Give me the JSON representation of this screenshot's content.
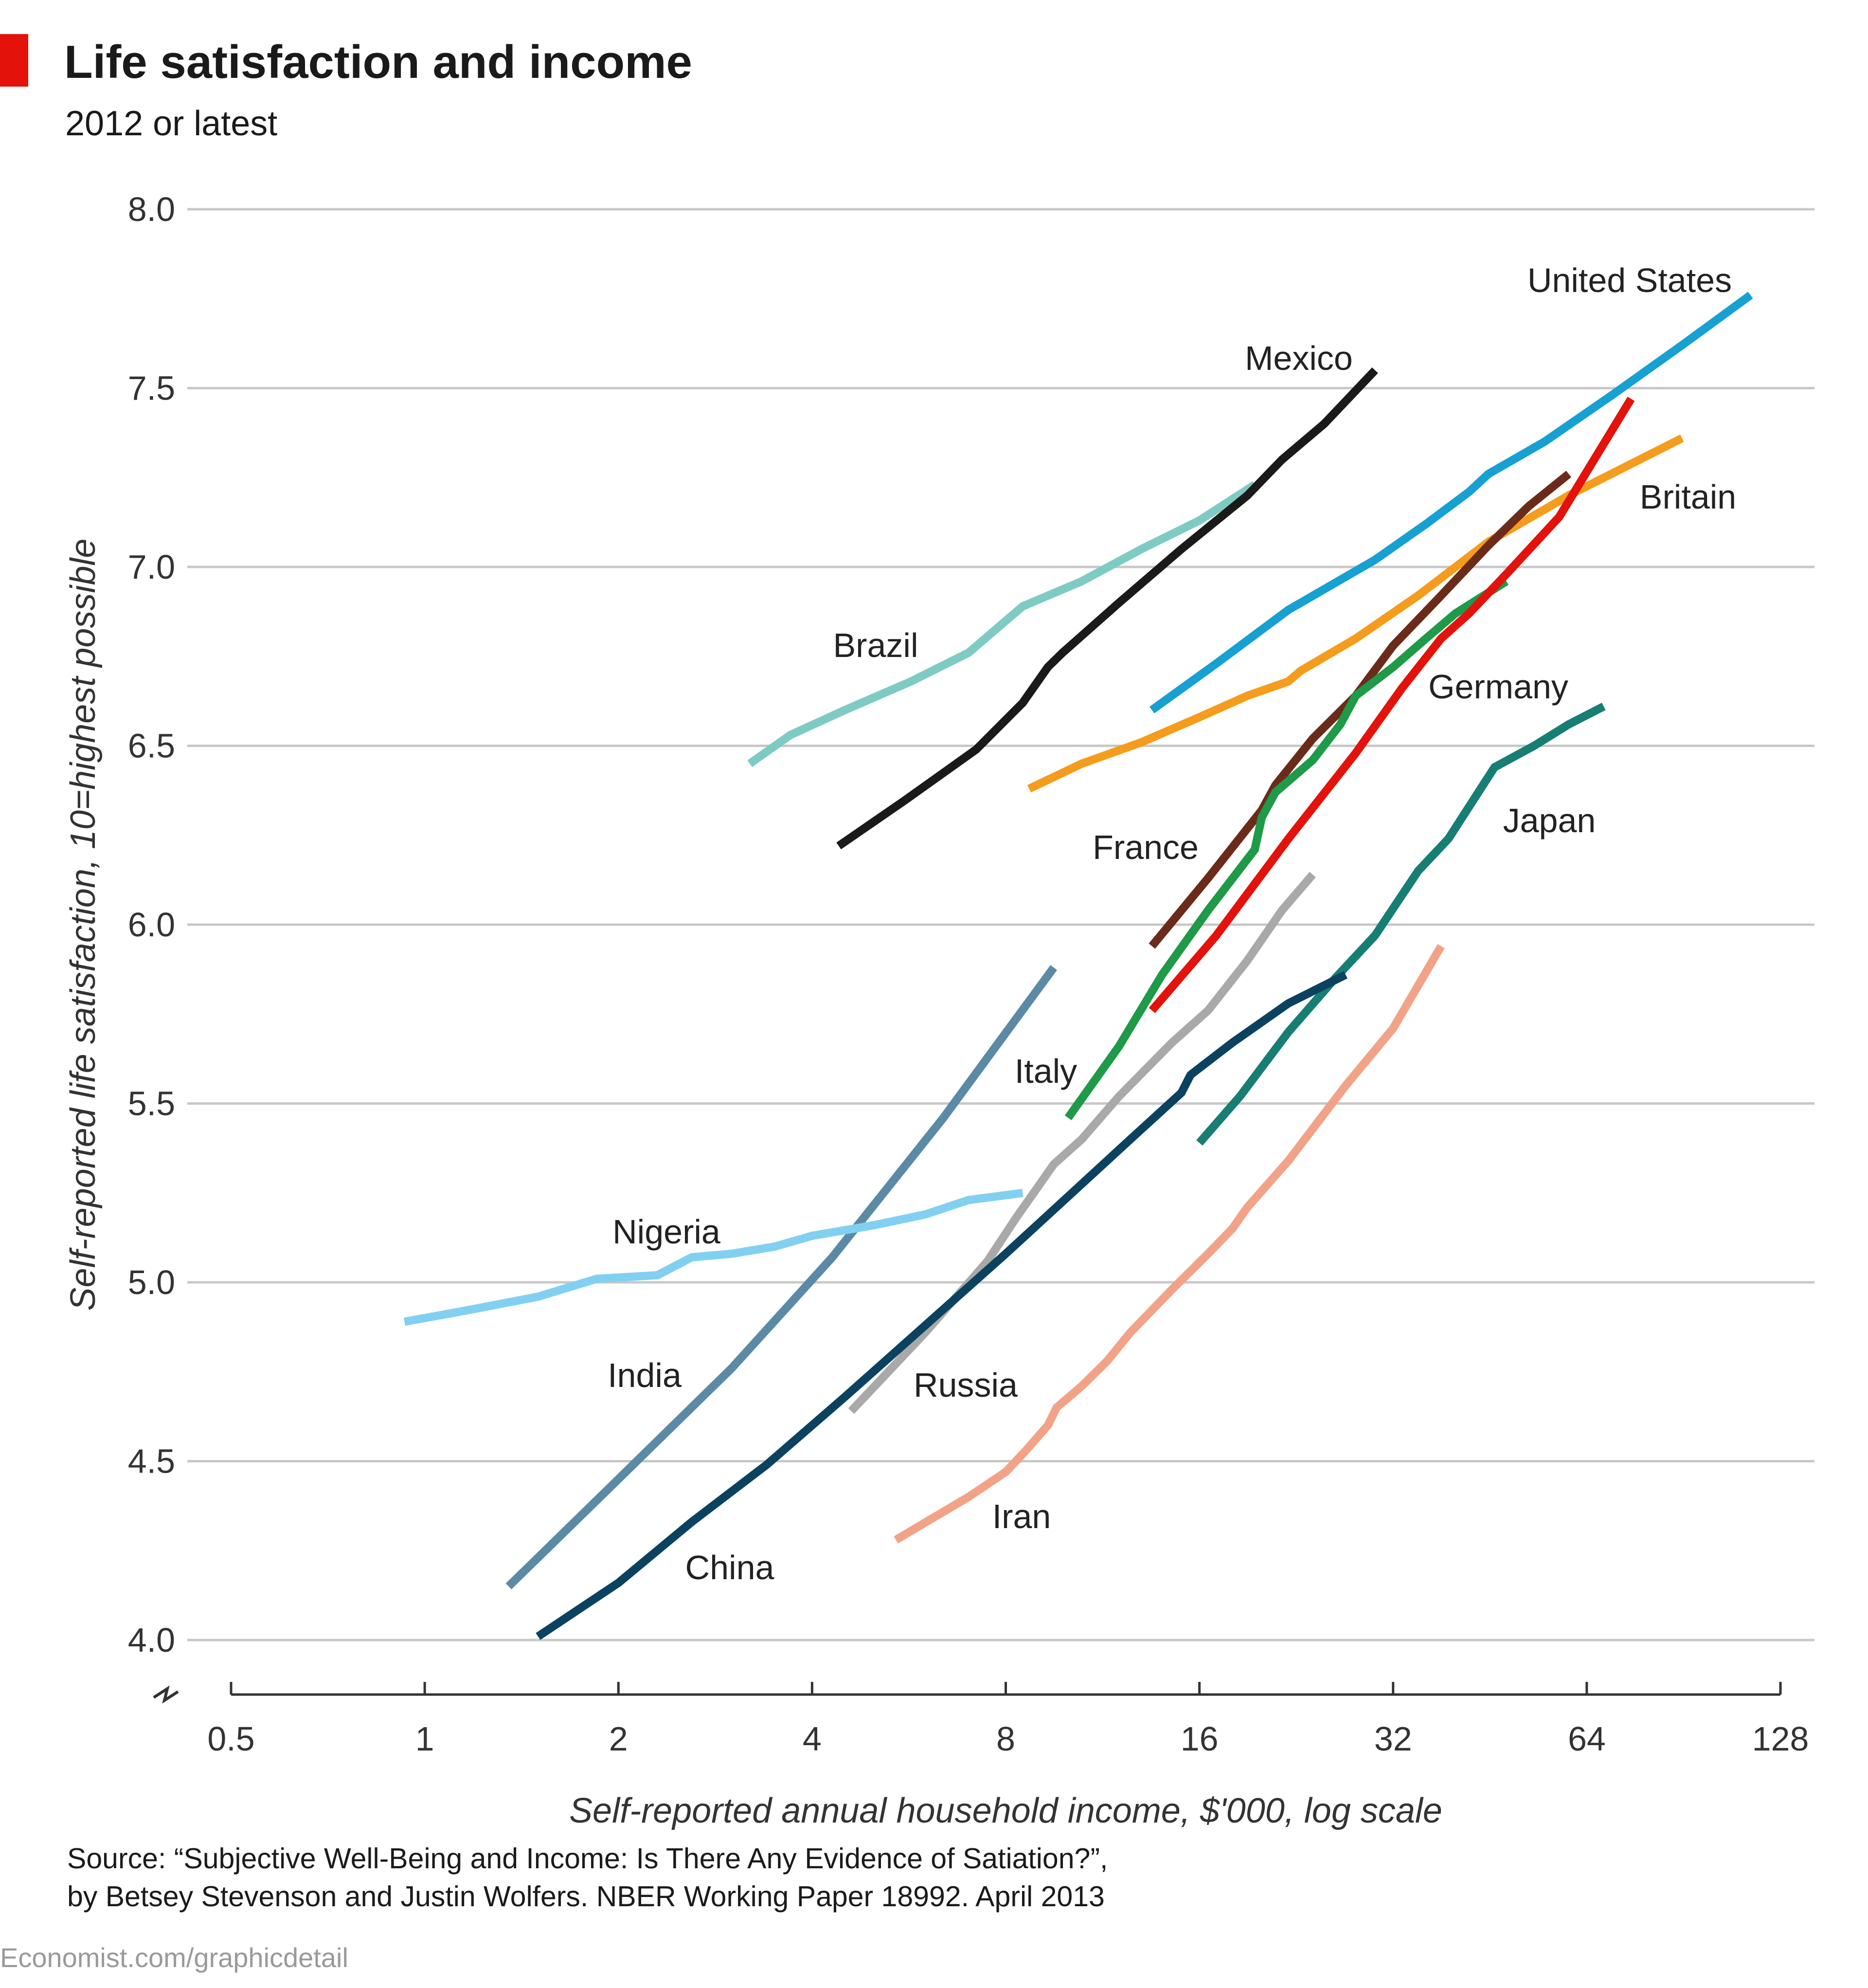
{
  "header": {
    "title": "Life satisfaction and income",
    "subtitle": "2012 or latest",
    "accent_color": "#e3120b"
  },
  "footer": {
    "source_line1": "Source: “Subjective Well-Being and Income: Is There Any Evidence of Satiation?”,",
    "source_line2": "by Betsey Stevenson and Justin Wolfers. NBER Working Paper 18992. April 2013",
    "credit": "Economist.com/graphicdetail"
  },
  "chart_data": {
    "type": "line",
    "title": "Life satisfaction and income",
    "subtitle": "2012 or latest",
    "xlabel": "Self-reported annual household income, $'000, log scale",
    "ylabel": "Self-reported life satisfaction, 10=highest possible",
    "x_scale": "log2",
    "xlim": [
      0.5,
      128
    ],
    "ylim": [
      4.0,
      8.0
    ],
    "x_ticks": [
      0.5,
      1,
      2,
      4,
      8,
      16,
      32,
      64,
      128
    ],
    "x_tick_labels": [
      "0.5",
      "1",
      "2",
      "4",
      "8",
      "16",
      "32",
      "64",
      "128"
    ],
    "y_ticks": [
      4.0,
      4.5,
      5.0,
      5.5,
      6.0,
      6.5,
      7.0,
      7.5,
      8.0
    ],
    "y_tick_labels": [
      "4.0",
      "4.5",
      "5.0",
      "5.5",
      "6.0",
      "6.5",
      "7.0",
      "7.5",
      "8.0"
    ],
    "grid": true,
    "series": [
      {
        "name": "Brazil",
        "color": "#7ecbc4",
        "label": "Brazil",
        "x": [
          3.2,
          3.7,
          4.5,
          5.7,
          7.0,
          8.5,
          10.5,
          13.0,
          16.0,
          19.5
        ],
        "y": [
          6.45,
          6.53,
          6.6,
          6.68,
          6.76,
          6.89,
          6.96,
          7.05,
          7.13,
          7.23
        ]
      },
      {
        "name": "Mexico",
        "color": "#1a1a1a",
        "label": "Mexico",
        "x": [
          4.4,
          5.6,
          7.2,
          8.5,
          9.3,
          9.8,
          12.0,
          15.0,
          19.0,
          21.5,
          25.0,
          30.0
        ],
        "y": [
          6.22,
          6.35,
          6.49,
          6.62,
          6.72,
          6.76,
          6.9,
          7.05,
          7.2,
          7.3,
          7.4,
          7.55
        ]
      },
      {
        "name": "United States",
        "color": "#17a0d2",
        "label": "United States",
        "x": [
          13.5,
          17.0,
          22.0,
          30.0,
          36.0,
          42.0,
          45.0,
          55.0,
          70.0,
          90.0,
          115.0
        ],
        "y": [
          6.6,
          6.73,
          6.88,
          7.02,
          7.12,
          7.21,
          7.26,
          7.35,
          7.48,
          7.62,
          7.76
        ]
      },
      {
        "name": "Britain",
        "color": "#f59c1d",
        "label": "Britain",
        "x": [
          8.7,
          10.5,
          13.0,
          16.0,
          19.0,
          22.0,
          23.0,
          28.0,
          35.0,
          45.0,
          60.0,
          90.0
        ],
        "y": [
          6.38,
          6.45,
          6.51,
          6.58,
          6.64,
          6.68,
          6.71,
          6.8,
          6.92,
          7.07,
          7.2,
          7.36
        ]
      },
      {
        "name": "France",
        "color": "#6b2b1a",
        "label": "France",
        "x": [
          13.5,
          16.5,
          20.0,
          21.0,
          24.0,
          28.0,
          32.0,
          38.0,
          45.0,
          52.0,
          60.0
        ],
        "y": [
          5.94,
          6.13,
          6.32,
          6.39,
          6.52,
          6.64,
          6.78,
          6.92,
          7.06,
          7.17,
          7.26
        ]
      },
      {
        "name": "Germany",
        "color": "#1e9a48",
        "label": "Germany",
        "x": [
          10.0,
          12.0,
          14.0,
          16.5,
          19.5,
          20.0,
          21.0,
          24.0,
          26.5,
          28.0,
          32.0,
          36.0,
          40.0,
          48.0
        ],
        "y": [
          5.46,
          5.66,
          5.86,
          6.04,
          6.21,
          6.3,
          6.37,
          6.46,
          6.56,
          6.64,
          6.72,
          6.8,
          6.87,
          6.96
        ]
      },
      {
        "name": "Red series (unlabelled)",
        "color": "#e3120b",
        "x": [
          13.5,
          17.0,
          22.0,
          28.0,
          33.0,
          38.0,
          42.0,
          48.0,
          58.0,
          75.0
        ],
        "y": [
          5.76,
          5.97,
          6.24,
          6.48,
          6.66,
          6.8,
          6.87,
          6.98,
          7.14,
          7.47
        ]
      },
      {
        "name": "Italy",
        "color": "#a9a9a9",
        "label": "Italy",
        "x": [
          4.6,
          6.0,
          7.5,
          8.3,
          9.0,
          9.5,
          10.5,
          12.0,
          14.5,
          16.5,
          19.0,
          21.5,
          24.0
        ],
        "y": [
          4.64,
          4.86,
          5.06,
          5.18,
          5.27,
          5.33,
          5.4,
          5.52,
          5.67,
          5.76,
          5.9,
          6.04,
          6.14
        ]
      },
      {
        "name": "Japan",
        "color": "#177e74",
        "label": "Japan",
        "x": [
          16.0,
          18.5,
          22.0,
          26.0,
          30.0,
          35.0,
          39.0,
          46.0,
          53.0,
          60.0,
          68.0
        ],
        "y": [
          5.39,
          5.52,
          5.7,
          5.85,
          5.97,
          6.15,
          6.24,
          6.44,
          6.5,
          6.56,
          6.61
        ]
      },
      {
        "name": "China",
        "color": "#0b4260",
        "label": "China",
        "x": [
          1.5,
          2.0,
          2.6,
          3.4,
          4.5,
          6.0,
          8.0,
          10.0,
          12.5,
          15.0,
          15.5,
          18.0,
          22.0,
          27.0
        ],
        "y": [
          4.01,
          4.16,
          4.33,
          4.49,
          4.68,
          4.88,
          5.08,
          5.24,
          5.4,
          5.53,
          5.58,
          5.67,
          5.78,
          5.86
        ]
      },
      {
        "name": "India",
        "color": "#5b8aa6",
        "label": "India",
        "x": [
          1.35,
          2.0,
          3.0,
          4.3,
          6.4,
          9.5
        ],
        "y": [
          4.15,
          4.45,
          4.76,
          5.07,
          5.46,
          5.88
        ]
      },
      {
        "name": "Nigeria",
        "color": "#82d0f1",
        "label": "Nigeria",
        "x": [
          0.93,
          1.15,
          1.5,
          1.85,
          2.3,
          2.6,
          3.0,
          3.5,
          4.0,
          5.0,
          6.0,
          7.0,
          8.5
        ],
        "y": [
          4.89,
          4.92,
          4.96,
          5.01,
          5.02,
          5.07,
          5.08,
          5.1,
          5.13,
          5.16,
          5.19,
          5.23,
          5.25
        ]
      },
      {
        "name": "Iran",
        "color": "#f2a387",
        "label": "Iran",
        "x": [
          5.4,
          7.0,
          8.0,
          8.6,
          9.3,
          9.6,
          10.5,
          11.5,
          12.5,
          14.5,
          16.5,
          18.0,
          19.0,
          22.0,
          27.0,
          32.0,
          38.0
        ],
        "y": [
          4.28,
          4.4,
          4.47,
          4.53,
          4.6,
          4.65,
          4.71,
          4.78,
          4.86,
          4.98,
          5.08,
          5.15,
          5.21,
          5.34,
          5.55,
          5.71,
          5.94
        ]
      }
    ]
  }
}
